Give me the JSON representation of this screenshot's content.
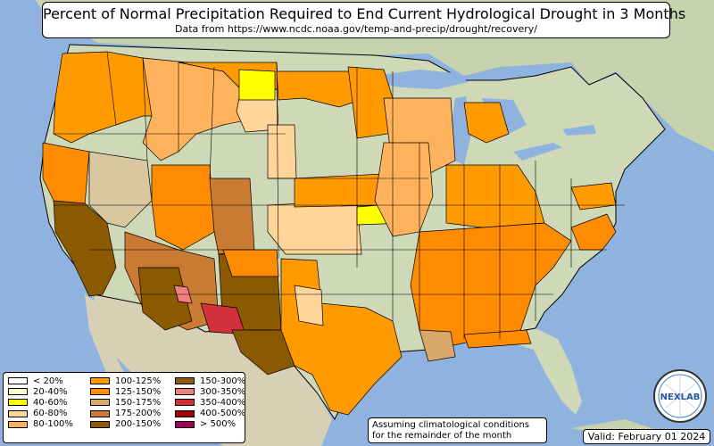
{
  "title": "Percent of Normal Precipitation Required to End Current Hydrological Drought in 3 Months",
  "subtitle": "Data from https://www.ncdc.noaa.gov/temp-and-precip/drought/recovery/",
  "note_line1": "Assuming climatological conditions",
  "note_line2": "for the remainder of the month",
  "valid": "Valid: February 01 2024",
  "logo_text": "NEXLAB",
  "legend": [
    {
      "label": "< 20%",
      "color": "#ffffff"
    },
    {
      "label": "20-40%",
      "color": "#ffffcc"
    },
    {
      "label": "40-60%",
      "color": "#ffff00"
    },
    {
      "label": "60-80%",
      "color": "#ffd59a"
    },
    {
      "label": "80-100%",
      "color": "#ffb25c"
    },
    {
      "label": "100-125%",
      "color": "#ff9a00"
    },
    {
      "label": "125-150%",
      "color": "#ff8c00"
    },
    {
      "label": "150-175%",
      "color": "#d9a86a"
    },
    {
      "label": "175-200%",
      "color": "#c97b33"
    },
    {
      "label": "200-150%",
      "color": "#8b5a00"
    },
    {
      "label": "150-300%",
      "color": "#8a5a10"
    },
    {
      "label": "300-350%",
      "color": "#f08080"
    },
    {
      "label": "350-400%",
      "color": "#d2303a"
    },
    {
      "label": "400-500%",
      "color": "#a00000"
    },
    {
      "label": "> 500%",
      "color": "#a0005a"
    }
  ],
  "colors": {
    "ocean": "#8fb3de",
    "land": "#cfd9b8",
    "land_dark": "#b9c8a0",
    "mexico": "#d8d0b4",
    "canada": "#c6d3ae",
    "state_border": "#000000"
  }
}
